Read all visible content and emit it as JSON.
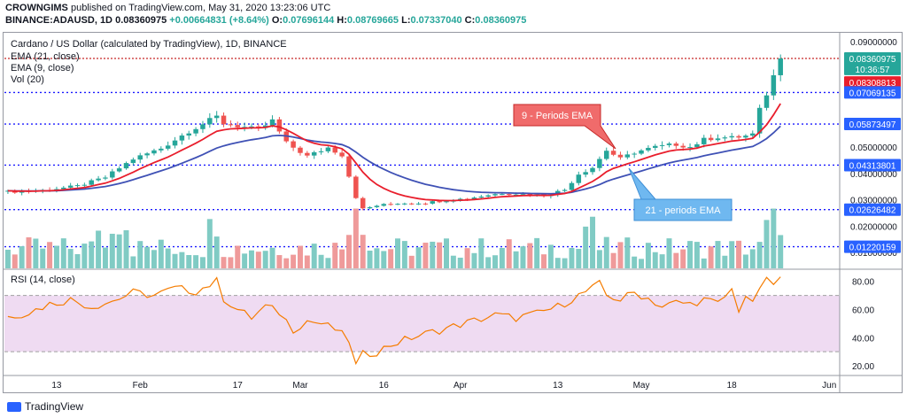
{
  "header": {
    "publisher": "CROWNGIMS",
    "published_text": "published on TradingView.com, May 31, 2020 13:23:06 UTC",
    "symbol": "BINANCE:ADAUSD, 1D",
    "last": "0.08360975",
    "change": "+0.00664831 (+8.64%)",
    "open_label": "O:",
    "open": "0.07696144",
    "high_label": "H:",
    "high": "0.08769665",
    "low_label": "L:",
    "low": "0.07337040",
    "close_label": "C:",
    "close": "0.08360975"
  },
  "legend": {
    "title": "Cardano / US Dollar (calculated by TradingView), 1D, BINANCE",
    "ema21": "EMA (21, close)",
    "ema9": "EMA (9, close)",
    "vol": "Vol (20)",
    "rsi": "RSI (14, close)"
  },
  "annotations": {
    "ema9_callout": "9 - Periods EMA",
    "ema21_callout": "21 - periods EMA"
  },
  "footer": {
    "brand": "TradingView"
  },
  "colors": {
    "up": "#26a69a",
    "down": "#ef5350",
    "ema9": "#e91e2c",
    "ema21": "#3f51b5",
    "vol_up": "#80cbc4",
    "vol_down": "#ef9a9a",
    "rsi_line": "#f57c00",
    "rsi_band": "#e1bee7",
    "level_line": "#1a1aff",
    "close_line": "#c62828",
    "callout_red": "#f06b6b",
    "callout_blue": "#6fb8f0"
  },
  "chart_data": {
    "type": "candlestick",
    "price_axis": {
      "ticks": [
        "0.09000000",
        "0.05000000",
        "0.04000000",
        "0.03000000",
        "0.02000000",
        "0.01000000"
      ],
      "tick_values": [
        0.09,
        0.05,
        0.04,
        0.03,
        0.02,
        0.01
      ],
      "ylim": [
        0.004,
        0.093
      ]
    },
    "price_badges": [
      {
        "label": "0.08360975",
        "value": 0.08360975,
        "color": "#26a69a"
      },
      {
        "label": "10:36:57",
        "value": 0.0796,
        "color": "#26a69a"
      },
      {
        "label": "0.08308813",
        "value": 0.0745,
        "color": "#e91e2c"
      },
      {
        "label": "0.07069135",
        "value": 0.07069135,
        "color": "#2962ff"
      },
      {
        "label": "0.05873497",
        "value": 0.05873497,
        "color": "#2962ff"
      },
      {
        "label": "0.04313801",
        "value": 0.04313801,
        "color": "#2962ff"
      },
      {
        "label": "0.02626482",
        "value": 0.02626482,
        "color": "#2962ff"
      },
      {
        "label": "0.01220159",
        "value": 0.01220159,
        "color": "#2962ff"
      }
    ],
    "levels": [
      0.07069135,
      0.05873497,
      0.04313801,
      0.02626482,
      0.01220159
    ],
    "x_ticks": [
      "13",
      "Feb",
      "17",
      "Mar",
      "16",
      "Apr",
      "13",
      "May",
      "18",
      "Jun"
    ],
    "x_tick_index": [
      7,
      19,
      33,
      42,
      54,
      65,
      79,
      91,
      104,
      118
    ],
    "n_days": 120,
    "close_anchors": [
      [
        0,
        0.033
      ],
      [
        5,
        0.0336
      ],
      [
        10,
        0.0352
      ],
      [
        14,
        0.0385
      ],
      [
        18,
        0.0455
      ],
      [
        22,
        0.0495
      ],
      [
        26,
        0.056
      ],
      [
        30,
        0.0615
      ],
      [
        31,
        0.059
      ],
      [
        33,
        0.058
      ],
      [
        36,
        0.0565
      ],
      [
        38,
        0.06
      ],
      [
        40,
        0.0515
      ],
      [
        43,
        0.0465
      ],
      [
        46,
        0.0498
      ],
      [
        48,
        0.047
      ],
      [
        50,
        0.031
      ],
      [
        51,
        0.0265
      ],
      [
        53,
        0.0278
      ],
      [
        56,
        0.0287
      ],
      [
        60,
        0.0289
      ],
      [
        63,
        0.0298
      ],
      [
        66,
        0.0305
      ],
      [
        69,
        0.0318
      ],
      [
        71,
        0.0325
      ],
      [
        74,
        0.0322
      ],
      [
        77,
        0.0317
      ],
      [
        80,
        0.0338
      ],
      [
        82,
        0.0398
      ],
      [
        84,
        0.0422
      ],
      [
        86,
        0.0488
      ],
      [
        88,
        0.0455
      ],
      [
        90,
        0.048
      ],
      [
        93,
        0.05
      ],
      [
        96,
        0.051
      ],
      [
        98,
        0.05
      ],
      [
        100,
        0.0528
      ],
      [
        102,
        0.0538
      ],
      [
        104,
        0.0535
      ],
      [
        106,
        0.0542
      ],
      [
        107,
        0.0548
      ],
      [
        108,
        0.064
      ],
      [
        109,
        0.0702
      ],
      [
        110,
        0.0769
      ],
      [
        111,
        0.0836
      ]
    ],
    "rsi_axis": {
      "ticks": [
        "80.00",
        "60.00",
        "40.00",
        "20.00"
      ],
      "tick_values": [
        80,
        60,
        40,
        20
      ],
      "ylim": [
        15,
        88
      ],
      "band": [
        30,
        70
      ]
    },
    "rsi_anchors": [
      [
        0,
        55
      ],
      [
        3,
        58
      ],
      [
        6,
        64
      ],
      [
        9,
        67
      ],
      [
        12,
        62
      ],
      [
        15,
        66
      ],
      [
        18,
        72
      ],
      [
        21,
        70
      ],
      [
        24,
        75
      ],
      [
        27,
        73
      ],
      [
        30,
        80
      ],
      [
        31,
        68
      ],
      [
        33,
        60
      ],
      [
        35,
        54
      ],
      [
        37,
        62
      ],
      [
        39,
        58
      ],
      [
        41,
        46
      ],
      [
        43,
        52
      ],
      [
        45,
        50
      ],
      [
        47,
        46
      ],
      [
        49,
        38
      ],
      [
        50,
        20
      ],
      [
        51,
        28
      ],
      [
        53,
        30
      ],
      [
        55,
        35
      ],
      [
        58,
        40
      ],
      [
        61,
        44
      ],
      [
        64,
        48
      ],
      [
        67,
        52
      ],
      [
        70,
        56
      ],
      [
        73,
        54
      ],
      [
        76,
        57
      ],
      [
        79,
        62
      ],
      [
        82,
        70
      ],
      [
        84,
        75
      ],
      [
        85,
        78
      ],
      [
        86,
        70
      ],
      [
        88,
        67
      ],
      [
        90,
        72
      ],
      [
        92,
        68
      ],
      [
        94,
        62
      ],
      [
        96,
        65
      ],
      [
        98,
        64
      ],
      [
        100,
        67
      ],
      [
        102,
        64
      ],
      [
        104,
        74
      ],
      [
        105,
        60
      ],
      [
        106,
        70
      ],
      [
        107,
        63
      ],
      [
        108,
        76
      ],
      [
        109,
        80
      ],
      [
        110,
        78
      ],
      [
        111,
        82
      ]
    ]
  }
}
